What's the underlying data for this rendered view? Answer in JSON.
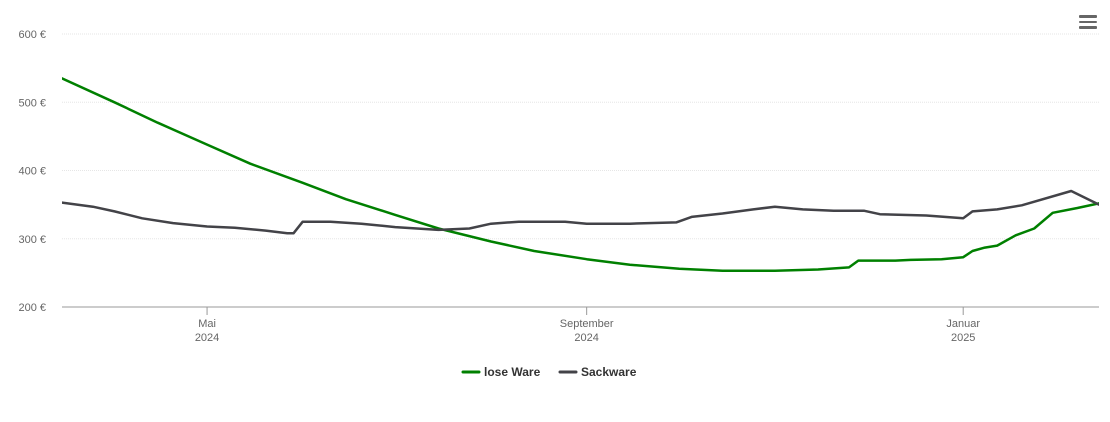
{
  "menu": {
    "icon": "hamburger-menu-icon"
  },
  "chart_data": {
    "type": "line",
    "title": "",
    "xlabel": "",
    "ylabel": "",
    "ylim": [
      200,
      600
    ],
    "y_ticks": [
      200,
      300,
      400,
      500,
      600
    ],
    "y_tick_labels": [
      "200 €",
      "300 €",
      "400 €",
      "500 €",
      "600 €"
    ],
    "xlim": [
      "2024-03-15",
      "2025-02-14"
    ],
    "x_ticks": [
      {
        "date": "2024-05-01",
        "line1": "Mai",
        "line2": "2024"
      },
      {
        "date": "2024-09-01",
        "line1": "September",
        "line2": "2024"
      },
      {
        "date": "2025-01-01",
        "line1": "Januar",
        "line2": "2025"
      }
    ],
    "grid": {
      "horizontal": true,
      "vertical": false
    },
    "legend": {
      "placement": "bottom-center"
    },
    "series": [
      {
        "name": "lose Ware",
        "color": "#008000",
        "points": [
          [
            "2024-03-15",
            535
          ],
          [
            "2024-04-01",
            500
          ],
          [
            "2024-04-15",
            470
          ],
          [
            "2024-05-01",
            438
          ],
          [
            "2024-05-15",
            410
          ],
          [
            "2024-06-01",
            382
          ],
          [
            "2024-06-15",
            358
          ],
          [
            "2024-07-01",
            335
          ],
          [
            "2024-07-15",
            315
          ],
          [
            "2024-08-01",
            296
          ],
          [
            "2024-08-15",
            282
          ],
          [
            "2024-09-01",
            270
          ],
          [
            "2024-09-15",
            262
          ],
          [
            "2024-10-01",
            256
          ],
          [
            "2024-10-15",
            253
          ],
          [
            "2024-11-01",
            253
          ],
          [
            "2024-11-15",
            255
          ],
          [
            "2024-11-25",
            258
          ],
          [
            "2024-11-28",
            268
          ],
          [
            "2024-12-10",
            268
          ],
          [
            "2024-12-15",
            269
          ],
          [
            "2024-12-25",
            270
          ],
          [
            "2025-01-01",
            273
          ],
          [
            "2025-01-04",
            282
          ],
          [
            "2025-01-08",
            287
          ],
          [
            "2025-01-12",
            290
          ],
          [
            "2025-01-18",
            305
          ],
          [
            "2025-01-24",
            315
          ],
          [
            "2025-01-30",
            338
          ],
          [
            "2025-02-07",
            345
          ],
          [
            "2025-02-14",
            352
          ]
        ]
      },
      {
        "name": "Sackware",
        "color": "#434348",
        "points": [
          [
            "2024-03-15",
            353
          ],
          [
            "2024-03-25",
            347
          ],
          [
            "2024-04-01",
            340
          ],
          [
            "2024-04-10",
            330
          ],
          [
            "2024-04-20",
            323
          ],
          [
            "2024-05-01",
            318
          ],
          [
            "2024-05-10",
            316
          ],
          [
            "2024-05-20",
            312
          ],
          [
            "2024-05-27",
            308
          ],
          [
            "2024-05-29",
            308
          ],
          [
            "2024-06-01",
            325
          ],
          [
            "2024-06-10",
            325
          ],
          [
            "2024-06-20",
            322
          ],
          [
            "2024-07-01",
            317
          ],
          [
            "2024-07-15",
            313
          ],
          [
            "2024-07-25",
            315
          ],
          [
            "2024-08-01",
            322
          ],
          [
            "2024-08-10",
            325
          ],
          [
            "2024-08-25",
            325
          ],
          [
            "2024-09-01",
            322
          ],
          [
            "2024-09-15",
            322
          ],
          [
            "2024-09-30",
            324
          ],
          [
            "2024-10-05",
            332
          ],
          [
            "2024-10-15",
            337
          ],
          [
            "2024-10-25",
            343
          ],
          [
            "2024-11-01",
            347
          ],
          [
            "2024-11-10",
            343
          ],
          [
            "2024-11-20",
            341
          ],
          [
            "2024-11-30",
            341
          ],
          [
            "2024-12-05",
            336
          ],
          [
            "2024-12-20",
            334
          ],
          [
            "2025-01-01",
            330
          ],
          [
            "2025-01-04",
            340
          ],
          [
            "2025-01-12",
            343
          ],
          [
            "2025-01-20",
            349
          ],
          [
            "2025-02-05",
            370
          ],
          [
            "2025-02-14",
            350
          ]
        ]
      }
    ]
  }
}
